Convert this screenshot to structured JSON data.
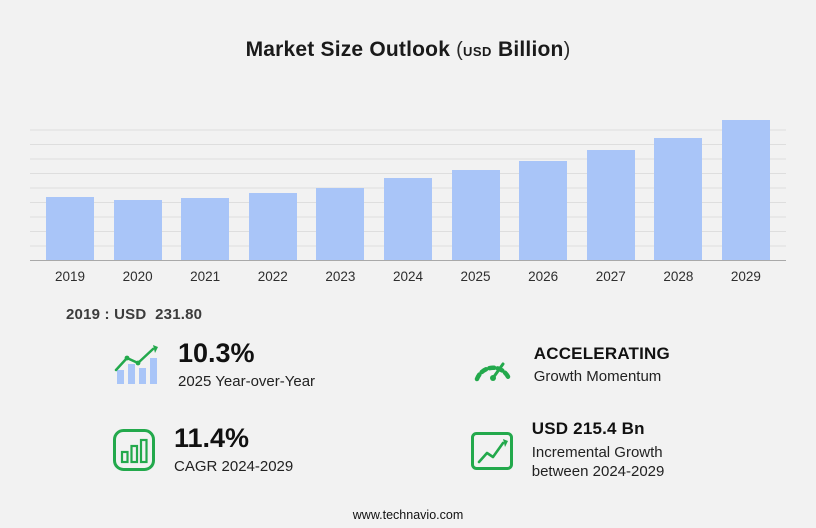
{
  "header": {
    "title": "Market Size Outlook",
    "paren_open": "(",
    "units_small": "USD",
    "units_big": "Billion",
    "paren_close": ")"
  },
  "chart_data": {
    "type": "bar",
    "title": "Market Size Outlook (USD Billion)",
    "categories": [
      "2019",
      "2020",
      "2021",
      "2022",
      "2023",
      "2024",
      "2025",
      "2026",
      "2027",
      "2028",
      "2029"
    ],
    "values": [
      231.8,
      221.0,
      230.0,
      247.0,
      266.0,
      301.4,
      332.5,
      366.0,
      404.0,
      450.0,
      516.8
    ],
    "xlabel": "",
    "ylabel": "",
    "ylim": [
      0,
      530
    ],
    "grid": true,
    "legend": "none",
    "bar_color": "#a9c5f8"
  },
  "annotation": "2019 : USD  231.80",
  "stats": [
    {
      "id": "yoy",
      "icon": "bar-growth-icon",
      "value": "10.3%",
      "label": "2025 Year-over-Year"
    },
    {
      "id": "momentum",
      "icon": "speedometer-icon",
      "value": "ACCELERATING",
      "label": "Growth Momentum"
    },
    {
      "id": "cagr",
      "icon": "cagr-chart-icon",
      "value": "11.4%",
      "label": "CAGR 2024-2029"
    },
    {
      "id": "incremental",
      "icon": "incremental-growth-icon",
      "value": "USD 215.4 Bn",
      "label": "Incremental Growth between 2024-2029"
    }
  ],
  "colors": {
    "accent_green": "#23a94c",
    "bar_blue": "#a9c5f8",
    "background": "#f2f2f2"
  },
  "footer": "www.technavio.com"
}
